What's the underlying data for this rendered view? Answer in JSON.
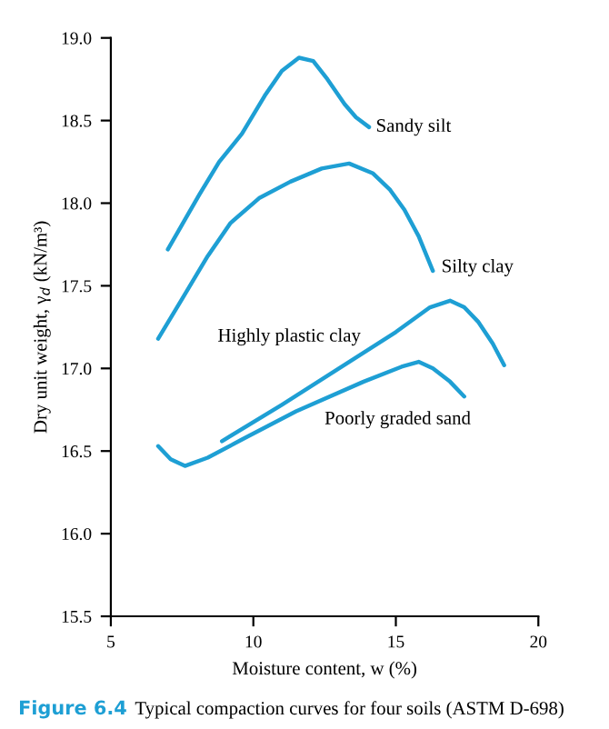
{
  "chart_data": {
    "type": "line",
    "xlabel": "Moisture content, w (%)",
    "ylabel": "Dry unit weight, γ$_{d}$ (kN/m³)",
    "xlim": [
      5,
      20
    ],
    "xticks": [
      5,
      10,
      15,
      20
    ],
    "ylim": [
      15.5,
      19.0
    ],
    "yticks": [
      {
        "value": 15.5,
        "label": "15.5"
      },
      {
        "value": 16.0,
        "label": "16.0"
      },
      {
        "value": 16.5,
        "label": "16.5"
      },
      {
        "value": 17.0,
        "label": "17.0"
      },
      {
        "value": 17.5,
        "label": "17.5"
      },
      {
        "value": 18.0,
        "label": "18.0"
      },
      {
        "value": 18.5,
        "label": "18.5"
      },
      {
        "value": 19.0,
        "label": "19.0"
      }
    ],
    "grid": false,
    "legend": false,
    "marker": "none",
    "line_style": "solid",
    "series": [
      {
        "color": "#1e9fd4",
        "x": [
          7.0,
          7.6,
          8.1,
          8.8,
          9.6,
          10.4,
          11.0,
          11.6,
          12.1,
          12.6,
          13.2,
          13.6,
          14.06
        ],
        "values": [
          17.72,
          17.9,
          18.05,
          18.25,
          18.42,
          18.65,
          18.8,
          18.88,
          18.86,
          18.75,
          18.6,
          18.52,
          18.46
        ]
      },
      {
        "color": "#1e9fd4",
        "x": [
          6.66,
          7.5,
          8.4,
          9.2,
          10.2,
          11.3,
          12.4,
          13.36,
          14.2,
          14.8,
          15.3,
          15.8,
          16.3
        ],
        "values": [
          17.18,
          17.42,
          17.68,
          17.88,
          18.03,
          18.13,
          18.21,
          18.24,
          18.18,
          18.08,
          17.96,
          17.8,
          17.59
        ]
      },
      {
        "color": "#1e9fd4",
        "x": [
          8.9,
          11.0,
          13.0,
          15.0,
          16.2,
          16.9,
          17.4,
          17.9,
          18.4,
          18.8
        ],
        "values": [
          16.56,
          16.78,
          17.0,
          17.22,
          17.37,
          17.41,
          17.37,
          17.28,
          17.15,
          17.02
        ]
      },
      {
        "color": "#1e9fd4",
        "x": [
          6.66,
          7.1,
          7.6,
          8.4,
          9.6,
          11.5,
          13.87,
          15.2,
          15.8,
          16.3,
          16.9,
          17.4
        ],
        "values": [
          16.53,
          16.45,
          16.41,
          16.46,
          16.57,
          16.74,
          16.92,
          17.01,
          17.04,
          17.0,
          16.92,
          16.83
        ]
      }
    ],
    "annotations": [
      {
        "text": "Sandy silt",
        "x": 14.3,
        "y": 18.46
      },
      {
        "text": "Silty clay",
        "x": 16.6,
        "y": 17.61
      },
      "Highly plastic clay",
      "Poorly graded sand",
      "Figure 6.4",
      "Typical compaction curves for four soils (ASTM D-698)"
    ]
  }
}
